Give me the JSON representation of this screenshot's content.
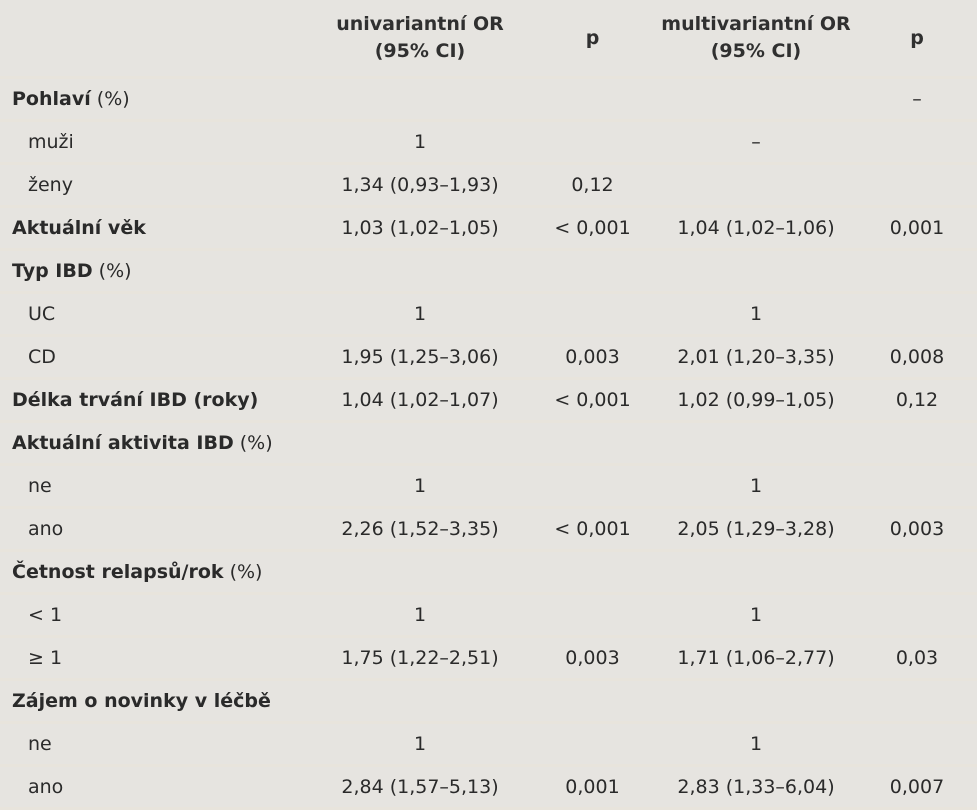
{
  "header": {
    "col1": "",
    "col2_line1": "univariantní OR",
    "col2_line2": "(95% CI)",
    "col3": "p",
    "col4_line1": "multivariantní OR",
    "col4_line2": "(95% CI)",
    "col5": "p"
  },
  "rows": [
    {
      "label": "Pohlaví",
      "suffix": " (%)",
      "or1": "",
      "p1": "",
      "or2": "",
      "p2": "–"
    },
    {
      "label": "muži",
      "suffix": "",
      "or1": "1",
      "p1": "",
      "or2": "–",
      "p2": ""
    },
    {
      "label": "ženy",
      "suffix": "",
      "or1": "1,34 (0,93–1,93)",
      "p1": "0,12",
      "or2": "",
      "p2": ""
    },
    {
      "label": "Aktuální věk",
      "suffix": "",
      "or1": "1,03 (1,02–1,05)",
      "p1": "< 0,001",
      "or2": "1,04 (1,02–1,06)",
      "p2": "0,001"
    },
    {
      "label": "Typ IBD",
      "suffix": " (%)",
      "or1": "",
      "p1": "",
      "or2": "",
      "p2": ""
    },
    {
      "label": "UC",
      "suffix": "",
      "or1": "1",
      "p1": "",
      "or2": "1",
      "p2": ""
    },
    {
      "label": "CD",
      "suffix": "",
      "or1": "1,95 (1,25–3,06)",
      "p1": "0,003",
      "or2": "2,01 (1,20–3,35)",
      "p2": "0,008"
    },
    {
      "label": "Délka trvání IBD (roky)",
      "suffix": "",
      "or1": "1,04 (1,02–1,07)",
      "p1": "< 0,001",
      "or2": "1,02 (0,99–1,05)",
      "p2": "0,12"
    },
    {
      "label": "Aktuální aktivita IBD",
      "suffix": " (%)",
      "or1": "",
      "p1": "",
      "or2": "",
      "p2": ""
    },
    {
      "label": "ne",
      "suffix": "",
      "or1": "1",
      "p1": "",
      "or2": "1",
      "p2": ""
    },
    {
      "label": "ano",
      "suffix": "",
      "or1": "2,26 (1,52–3,35)",
      "p1": "< 0,001",
      "or2": "2,05 (1,29–3,28)",
      "p2": "0,003"
    },
    {
      "label": "Četnost relapsů/rok",
      "suffix": " (%)",
      "or1": "",
      "p1": "",
      "or2": "",
      "p2": ""
    },
    {
      "label": "< 1",
      "suffix": "",
      "or1": "1",
      "p1": "",
      "or2": "1",
      "p2": ""
    },
    {
      "label": "≥ 1",
      "suffix": "",
      "or1": "1,75 (1,22–2,51)",
      "p1": "0,003",
      "or2": "1,71 (1,06–2,77)",
      "p2": "0,03"
    },
    {
      "label": "Zájem o novinky v léčbě",
      "suffix": "",
      "or1": "",
      "p1": "",
      "or2": "",
      "p2": ""
    },
    {
      "label": "ne",
      "suffix": "",
      "or1": "1",
      "p1": "",
      "or2": "1",
      "p2": ""
    },
    {
      "label": "ano",
      "suffix": "",
      "or1": "2,84 (1,57–5,13)",
      "p1": "0,001",
      "or2": "2,83 (1,33–6,04)",
      "p2": "0,007"
    }
  ]
}
